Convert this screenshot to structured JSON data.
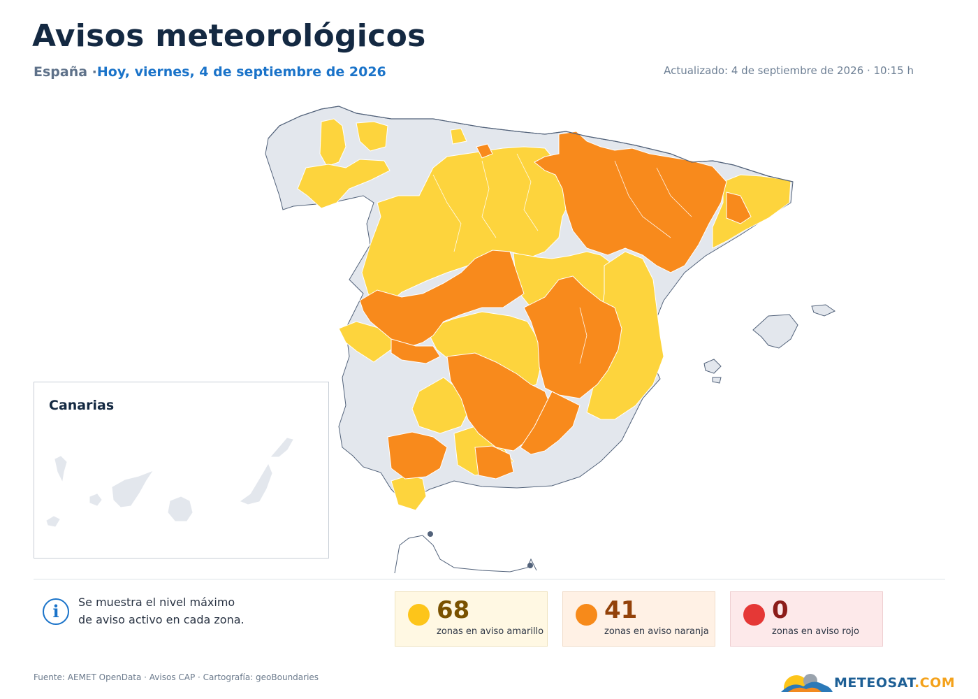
{
  "header": {
    "title": "Avisos meteorológicos",
    "region": "España",
    "separator": " ·",
    "date": "Hoy, viernes, 4 de septiembre de 2026",
    "updated": "Actualizado: 4 de septiembre de 2026 · 10:15 h"
  },
  "colors": {
    "yellow": "#fdd43d",
    "orange": "#f88a1c",
    "red": "#e53836",
    "none": "#e3e7ed",
    "border": "#52627a",
    "accent": "#1a73c9"
  },
  "inset": {
    "title": "Canarias"
  },
  "note": {
    "icon": "info-icon",
    "line1": "Se muestra el nivel máximo",
    "line2": "de aviso activo en cada zona."
  },
  "summary": [
    {
      "level": "amarillo",
      "count": "68",
      "label": "zonas en aviso amarillo"
    },
    {
      "level": "naranja",
      "count": "41",
      "label": "zonas en aviso naranja"
    },
    {
      "level": "rojo",
      "count": "0",
      "label": "zonas en aviso rojo"
    }
  ],
  "footer": {
    "source": "Fuente: AEMET OpenData · Avisos CAP · Cartografía: geoBoundaries",
    "brand_part1": "METEOSAT",
    "brand_part2": ".COM"
  }
}
